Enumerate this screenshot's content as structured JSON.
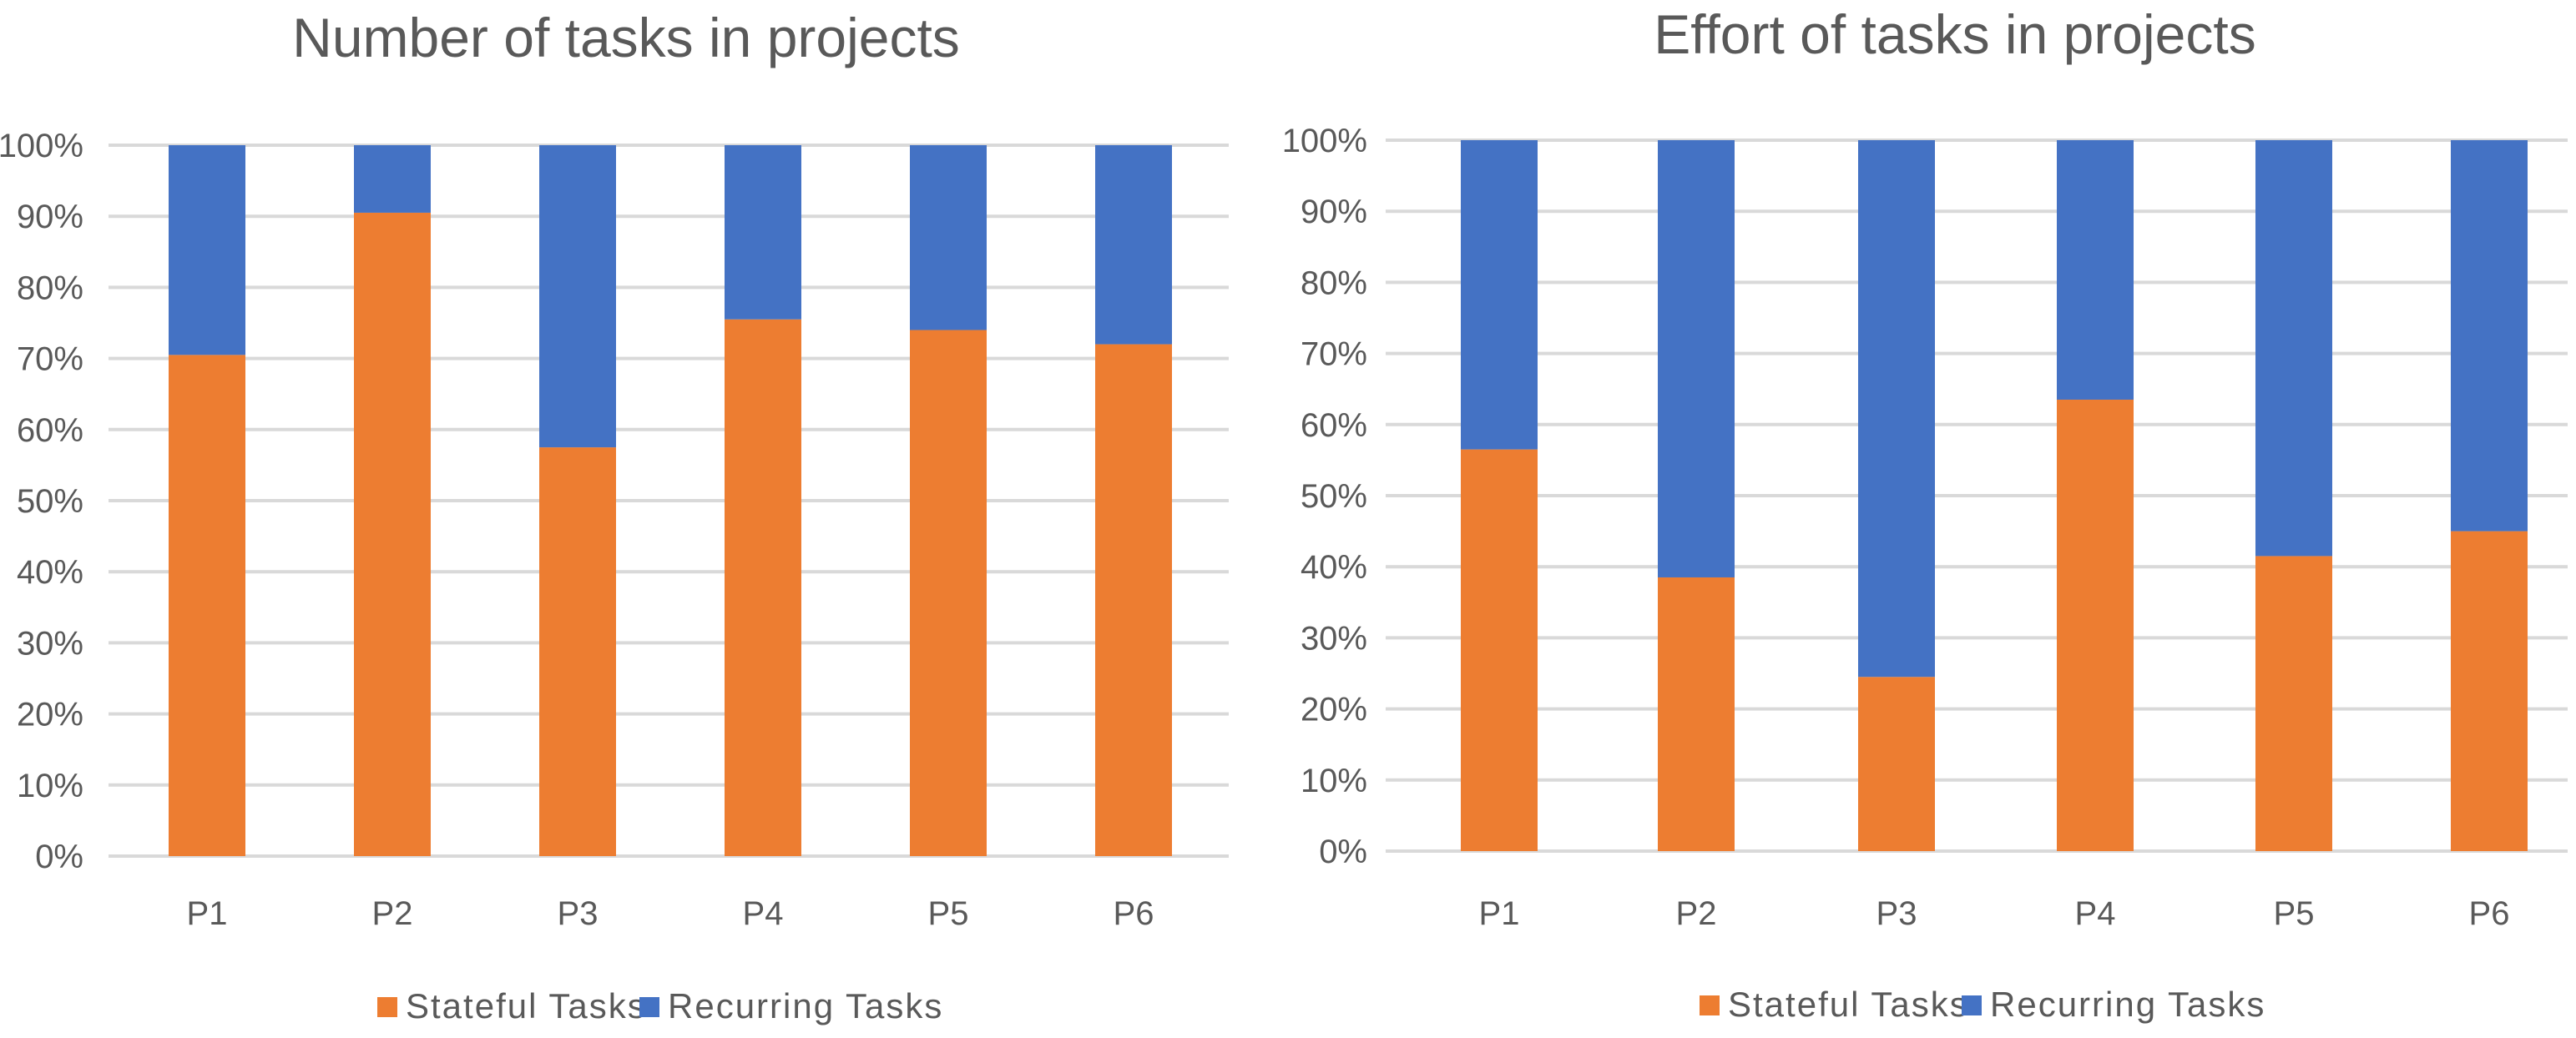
{
  "colors": {
    "stateful": "#ED7D31",
    "recurring": "#4472C4",
    "gridline": "#D9D9D9",
    "text": "#595959"
  },
  "chart_data": [
    {
      "type": "bar",
      "stacked": true,
      "percent": true,
      "title": "Number of tasks in projects",
      "xlabel": "",
      "ylabel": "",
      "categories": [
        "P1",
        "P2",
        "P3",
        "P4",
        "P5",
        "P6"
      ],
      "ylim": [
        0,
        100
      ],
      "yticks": [
        "0%",
        "10%",
        "20%",
        "30%",
        "40%",
        "50%",
        "60%",
        "70%",
        "80%",
        "90%",
        "100%"
      ],
      "grid": true,
      "legend_position": "bottom",
      "series": [
        {
          "name": "Stateful Tasks",
          "values": [
            70.5,
            90.5,
            57.5,
            75.5,
            74,
            72
          ]
        },
        {
          "name": "Recurring Tasks",
          "values": [
            29.5,
            9.5,
            42.5,
            24.5,
            26,
            28
          ]
        }
      ]
    },
    {
      "type": "bar",
      "stacked": true,
      "percent": true,
      "title": "Effort of tasks in projects",
      "xlabel": "",
      "ylabel": "",
      "categories": [
        "P1",
        "P2",
        "P3",
        "P4",
        "P5",
        "P6"
      ],
      "ylim": [
        0,
        100
      ],
      "yticks": [
        "0%",
        "10%",
        "20%",
        "30%",
        "40%",
        "50%",
        "60%",
        "70%",
        "80%",
        "90%",
        "100%"
      ],
      "grid": true,
      "legend_position": "bottom",
      "series": [
        {
          "name": "Stateful Tasks",
          "values": [
            56.5,
            38.5,
            24.5,
            63.5,
            41.5,
            45
          ]
        },
        {
          "name": "Recurring Tasks",
          "values": [
            43.5,
            61.5,
            75.5,
            36.5,
            58.5,
            55
          ]
        }
      ]
    }
  ]
}
